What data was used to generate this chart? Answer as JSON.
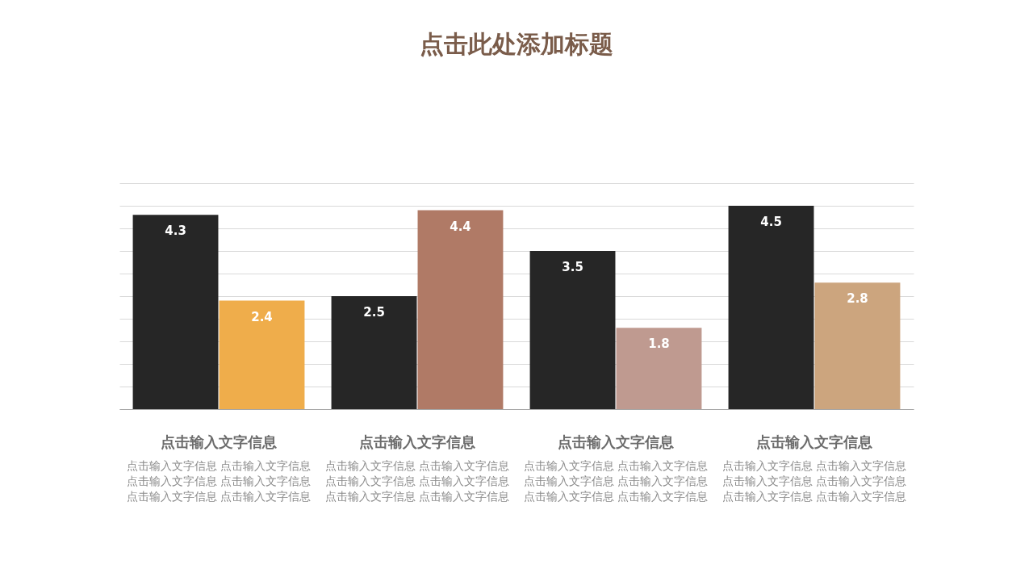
{
  "chart_data": {
    "type": "bar",
    "title": "点击此处添加标题",
    "categories": [
      "点击输入文字信息",
      "点击输入文字信息",
      "点击输入文字信息",
      "点击输入文字信息"
    ],
    "series": [
      {
        "color": "#262626",
        "values": [
          4.3,
          2.5,
          3.5,
          4.5
        ]
      },
      {
        "colors": [
          "#efad4b",
          "#b07a66",
          "#bf9a90",
          "#cca57e"
        ],
        "values": [
          2.4,
          4.4,
          1.8,
          2.8
        ]
      }
    ],
    "ylim": [
      0,
      5
    ],
    "yticks": [
      {
        "value": 0,
        "label": null
      },
      {
        "value": 0.5,
        "label": null
      },
      {
        "value": 1,
        "label": null
      },
      {
        "value": 1.5,
        "label": null
      },
      {
        "value": 2,
        "label": null
      },
      {
        "value": 2.5,
        "label": null
      },
      {
        "value": 3,
        "label": null
      },
      {
        "value": 3.5,
        "label": null
      },
      {
        "value": 4,
        "label": null
      },
      {
        "value": 4.5,
        "label": null
      },
      {
        "value": 5,
        "label": null
      }
    ],
    "grid": "y",
    "tick_labels": "x",
    "data_labels": true,
    "annotations": [
      "点击输入文字信息 点击输入文字信息点击输入文字信息 点击输入文字信息点击输入文字信息 点击输入文字信息",
      "点击输入文字信息 点击输入文字信息点击输入文字信息 点击输入文字信息点击输入文字信息 点击输入文字信息",
      "点击输入文字信息 点击输入文字信息点击输入文字信息 点击输入文字信息点击输入文字信息 点击输入文字信息",
      "点击输入文字信息 点击输入文字信息点击输入文字信息 点击输入文字信息点击输入文字信息 点击输入文字信息"
    ]
  }
}
